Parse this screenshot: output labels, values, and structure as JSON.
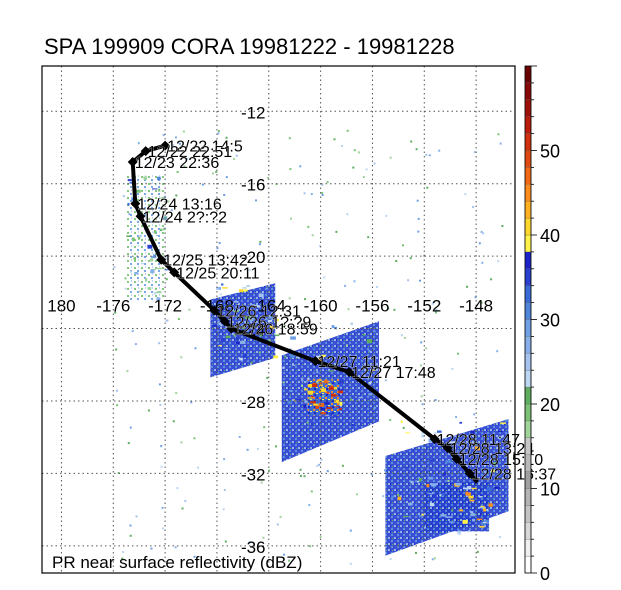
{
  "chart_data": {
    "type": "track",
    "title": "SPA 199909 CORA 19981222 - 19981228",
    "footer_label": "PR near surface reflectivity (dBZ)",
    "lon_range": [
      178.5,
      -145
    ],
    "lat_range": [
      -9.5,
      -37.5
    ],
    "lon_ticks": [
      180,
      -176,
      -172,
      -168,
      -164,
      -160,
      -156,
      -152,
      -148
    ],
    "lon_tick_labels": [
      "180",
      "-176",
      "-172",
      "-168",
      "-164",
      "-160",
      "-156",
      "-152",
      "-148"
    ],
    "lat_ticks": [
      -12,
      -16,
      -20,
      -24,
      -28,
      -32,
      -36
    ],
    "lat_tick_labels": [
      "-12",
      "-16",
      "-20",
      "-24",
      "-28",
      "-32",
      "-36"
    ],
    "grid": true,
    "track": [
      {
        "label": "12/22 14:5",
        "lon": -172.0,
        "lat": -13.9
      },
      {
        "label": "12/22 22:51",
        "lon": -173.5,
        "lat": -14.2
      },
      {
        "label": "12/23 22:36",
        "lon": -174.5,
        "lat": -14.8
      },
      {
        "label": "12/24 13:16",
        "lon": -174.3,
        "lat": -17.1
      },
      {
        "label": "12/24 2?:?2",
        "lon": -173.9,
        "lat": -17.8
      },
      {
        "label": "12/25 13:42",
        "lon": -172.3,
        "lat": -20.2
      },
      {
        "label": "12/25 20:11",
        "lon": -171.3,
        "lat": -20.9
      },
      {
        "label": "12/26 12:31",
        "lon": -168.2,
        "lat": -23.0
      },
      {
        "label": "12/26 1?:?9",
        "lon": -167.4,
        "lat": -23.6
      },
      {
        "label": "12/26 18:59",
        "lon": -166.9,
        "lat": -24.0
      },
      {
        "label": "12/27 11:21",
        "lon": -160.4,
        "lat": -25.8
      },
      {
        "label": "12/27 17:48",
        "lon": -157.8,
        "lat": -26.4
      },
      {
        "label": "12/28 11:47",
        "lon": -151.2,
        "lat": -30.1
      },
      {
        "label": "12/28 13:24",
        "lon": -150.2,
        "lat": -30.6
      },
      {
        "label": "12/28 15:10",
        "lon": -149.5,
        "lat": -31.2
      },
      {
        "label": "12/28 16:37",
        "lon": -148.5,
        "lat": -32.0
      }
    ],
    "track_end": {
      "lon": -147.9,
      "lat": -32.5
    },
    "colorbar": {
      "label_values": [
        0,
        10,
        20,
        30,
        40,
        50
      ],
      "tick_labels": [
        "0",
        "10",
        "20",
        "30",
        "40",
        "50"
      ],
      "range": [
        0,
        60
      ],
      "stops": [
        {
          "from": 0,
          "to": 2,
          "color": "#ffffff"
        },
        {
          "from": 2,
          "to": 4,
          "color": "#f0f0f0"
        },
        {
          "from": 4,
          "to": 6,
          "color": "#d8d8d8"
        },
        {
          "from": 6,
          "to": 8,
          "color": "#c4c4c4"
        },
        {
          "from": 8,
          "to": 10,
          "color": "#b4b4b4"
        },
        {
          "from": 10,
          "to": 12,
          "color": "#a0a0a0"
        },
        {
          "from": 12,
          "to": 14,
          "color": "#b8b8b8"
        },
        {
          "from": 14,
          "to": 16,
          "color": "#c8c8c8"
        },
        {
          "from": 16,
          "to": 18,
          "color": "#9fd49a"
        },
        {
          "from": 18,
          "to": 20,
          "color": "#7cc378"
        },
        {
          "from": 20,
          "to": 22,
          "color": "#5fae60"
        },
        {
          "from": 22,
          "to": 24,
          "color": "#bcd6f4"
        },
        {
          "from": 24,
          "to": 26,
          "color": "#a4c4ee"
        },
        {
          "from": 26,
          "to": 28,
          "color": "#87b0ea"
        },
        {
          "from": 28,
          "to": 30,
          "color": "#6fa0e6"
        },
        {
          "from": 30,
          "to": 32,
          "color": "#4f86dc"
        },
        {
          "from": 32,
          "to": 34,
          "color": "#3a6ad8"
        },
        {
          "from": 34,
          "to": 36,
          "color": "#2a40d0"
        },
        {
          "from": 36,
          "to": 38,
          "color": "#1a22c8"
        },
        {
          "from": 38,
          "to": 40,
          "color": "#fff34a"
        },
        {
          "from": 40,
          "to": 42,
          "color": "#ffd82a"
        },
        {
          "from": 42,
          "to": 44,
          "color": "#ffb020"
        },
        {
          "from": 44,
          "to": 46,
          "color": "#ff8c1a"
        },
        {
          "from": 46,
          "to": 48,
          "color": "#f06a14"
        },
        {
          "from": 48,
          "to": 50,
          "color": "#e04a10"
        },
        {
          "from": 50,
          "to": 52,
          "color": "#d02e0c"
        },
        {
          "from": 52,
          "to": 54,
          "color": "#b81c0a"
        },
        {
          "from": 54,
          "to": 56,
          "color": "#a01008"
        },
        {
          "from": 56,
          "to": 58,
          "color": "#880808"
        },
        {
          "from": 58,
          "to": 60,
          "color": "#6a0404"
        }
      ]
    },
    "swaths": [
      {
        "lon": [
          -168.5,
          -163.5
        ],
        "lat": [
          -21.5,
          -25.8
        ],
        "tilt": -0.25,
        "mean_dbz": 30
      },
      {
        "lon": [
          -163,
          -155.5
        ],
        "lat": [
          -23.6,
          -29.5
        ],
        "tilt": -0.35,
        "mean_dbz": 32
      },
      {
        "lon": [
          -161,
          -158.5
        ],
        "lat": [
          -26.8,
          -28.8
        ],
        "tilt": 0,
        "mean_dbz": 45
      },
      {
        "lon": [
          -155,
          -145.5
        ],
        "lat": [
          -29.0,
          -34.5
        ],
        "tilt": -0.3,
        "mean_dbz": 32
      },
      {
        "lon": [
          -152,
          -147
        ],
        "lat": [
          -32.5,
          -35.2
        ],
        "tilt": 0,
        "mean_dbz": 34
      },
      {
        "lon": [
          -175,
          -172
        ],
        "lat": [
          -15.5,
          -22.5
        ],
        "tilt": 0,
        "mean_dbz": 24
      }
    ]
  }
}
